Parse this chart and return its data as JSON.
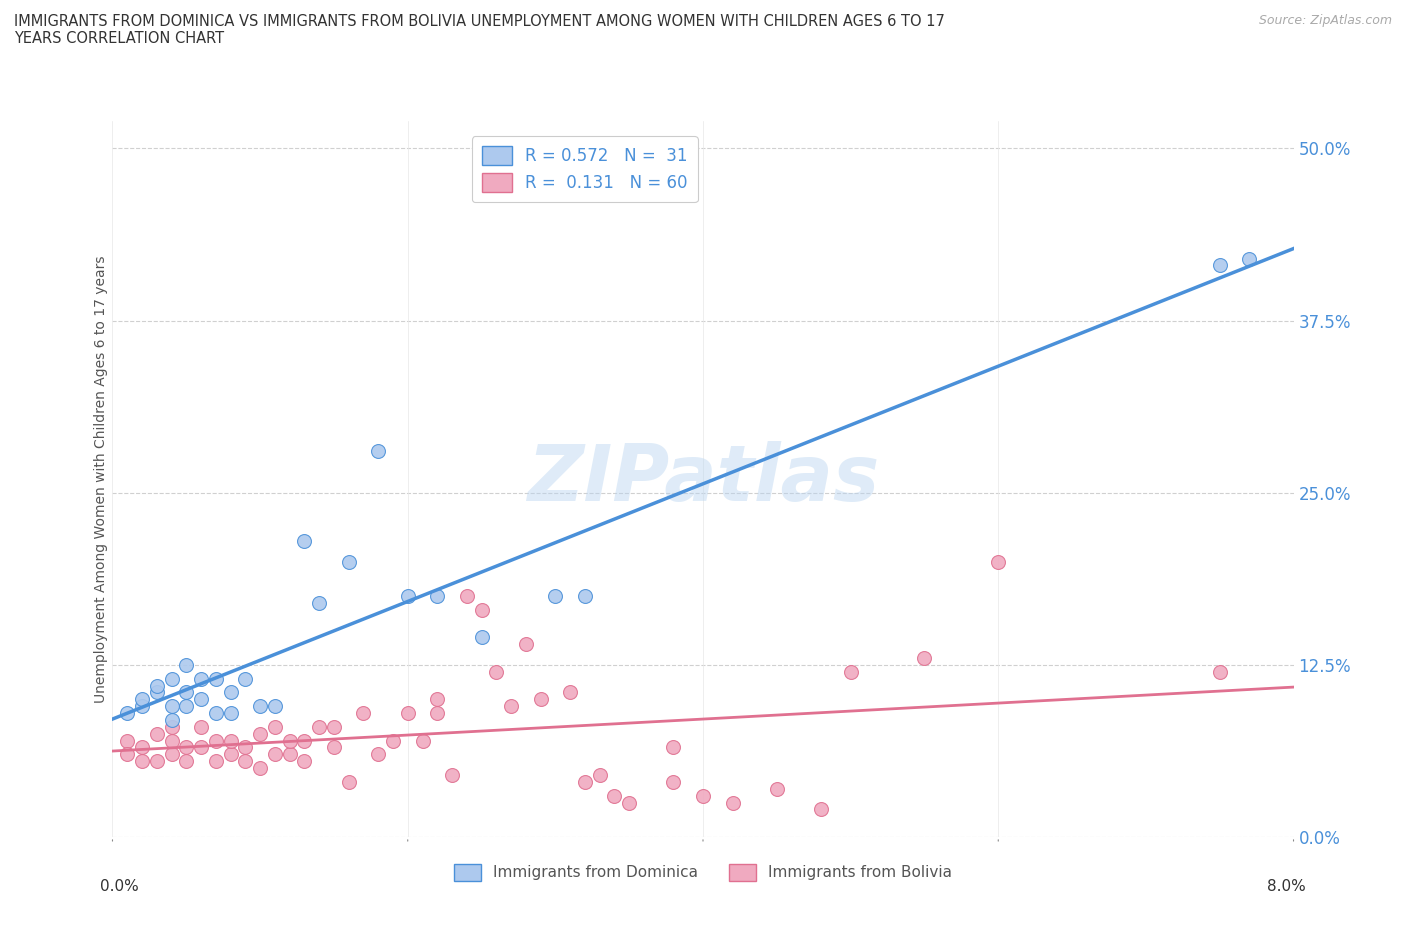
{
  "title_line1": "IMMIGRANTS FROM DOMINICA VS IMMIGRANTS FROM BOLIVIA UNEMPLOYMENT AMONG WOMEN WITH CHILDREN AGES 6 TO 17",
  "title_line2": "YEARS CORRELATION CHART",
  "source": "Source: ZipAtlas.com",
  "ylabel": "Unemployment Among Women with Children Ages 6 to 17 years",
  "ytick_labels": [
    "0.0%",
    "12.5%",
    "25.0%",
    "37.5%",
    "50.0%"
  ],
  "ytick_values": [
    0.0,
    0.125,
    0.25,
    0.375,
    0.5
  ],
  "xlim": [
    0.0,
    0.08
  ],
  "ylim": [
    0.0,
    0.52
  ],
  "watermark": "ZIPatlas",
  "legend1_R": "0.572",
  "legend1_N": "31",
  "legend2_R": "0.131",
  "legend2_N": "60",
  "dominica_color": "#adc9ee",
  "bolivia_color": "#f0aac0",
  "dominica_line_color": "#4a90d9",
  "bolivia_line_color": "#e07090",
  "dominica_scatter_x": [
    0.001,
    0.002,
    0.002,
    0.003,
    0.003,
    0.004,
    0.004,
    0.004,
    0.005,
    0.005,
    0.005,
    0.006,
    0.006,
    0.007,
    0.007,
    0.008,
    0.008,
    0.009,
    0.01,
    0.011,
    0.013,
    0.014,
    0.016,
    0.02,
    0.022,
    0.025,
    0.03,
    0.032,
    0.018,
    0.075,
    0.077
  ],
  "dominica_scatter_y": [
    0.09,
    0.095,
    0.1,
    0.105,
    0.11,
    0.085,
    0.095,
    0.115,
    0.095,
    0.105,
    0.125,
    0.1,
    0.115,
    0.09,
    0.115,
    0.09,
    0.105,
    0.115,
    0.095,
    0.095,
    0.215,
    0.17,
    0.2,
    0.175,
    0.175,
    0.145,
    0.175,
    0.175,
    0.28,
    0.415,
    0.42
  ],
  "bolivia_scatter_x": [
    0.001,
    0.001,
    0.002,
    0.002,
    0.003,
    0.003,
    0.004,
    0.004,
    0.004,
    0.005,
    0.005,
    0.006,
    0.006,
    0.007,
    0.007,
    0.008,
    0.008,
    0.009,
    0.009,
    0.01,
    0.01,
    0.011,
    0.011,
    0.012,
    0.012,
    0.013,
    0.013,
    0.014,
    0.015,
    0.015,
    0.016,
    0.017,
    0.018,
    0.019,
    0.02,
    0.021,
    0.022,
    0.022,
    0.023,
    0.024,
    0.025,
    0.026,
    0.027,
    0.028,
    0.029,
    0.031,
    0.032,
    0.033,
    0.034,
    0.035,
    0.038,
    0.038,
    0.04,
    0.042,
    0.045,
    0.048,
    0.05,
    0.055,
    0.06,
    0.075
  ],
  "bolivia_scatter_y": [
    0.07,
    0.06,
    0.065,
    0.055,
    0.075,
    0.055,
    0.07,
    0.06,
    0.08,
    0.055,
    0.065,
    0.065,
    0.08,
    0.055,
    0.07,
    0.06,
    0.07,
    0.055,
    0.065,
    0.05,
    0.075,
    0.06,
    0.08,
    0.06,
    0.07,
    0.055,
    0.07,
    0.08,
    0.065,
    0.08,
    0.04,
    0.09,
    0.06,
    0.07,
    0.09,
    0.07,
    0.09,
    0.1,
    0.045,
    0.175,
    0.165,
    0.12,
    0.095,
    0.14,
    0.1,
    0.105,
    0.04,
    0.045,
    0.03,
    0.025,
    0.04,
    0.065,
    0.03,
    0.025,
    0.035,
    0.02,
    0.12,
    0.13,
    0.2,
    0.12
  ],
  "background_color": "#ffffff",
  "grid_color": "#d0d0d0",
  "marker_size": 100,
  "title_color": "#333333",
  "axis_tick_color": "#4a90d9",
  "xtick_positions": [
    0.0,
    0.02,
    0.04,
    0.06,
    0.08
  ],
  "xtick_labels": [
    "0.0%",
    "",
    "",
    "",
    "8.0%"
  ]
}
